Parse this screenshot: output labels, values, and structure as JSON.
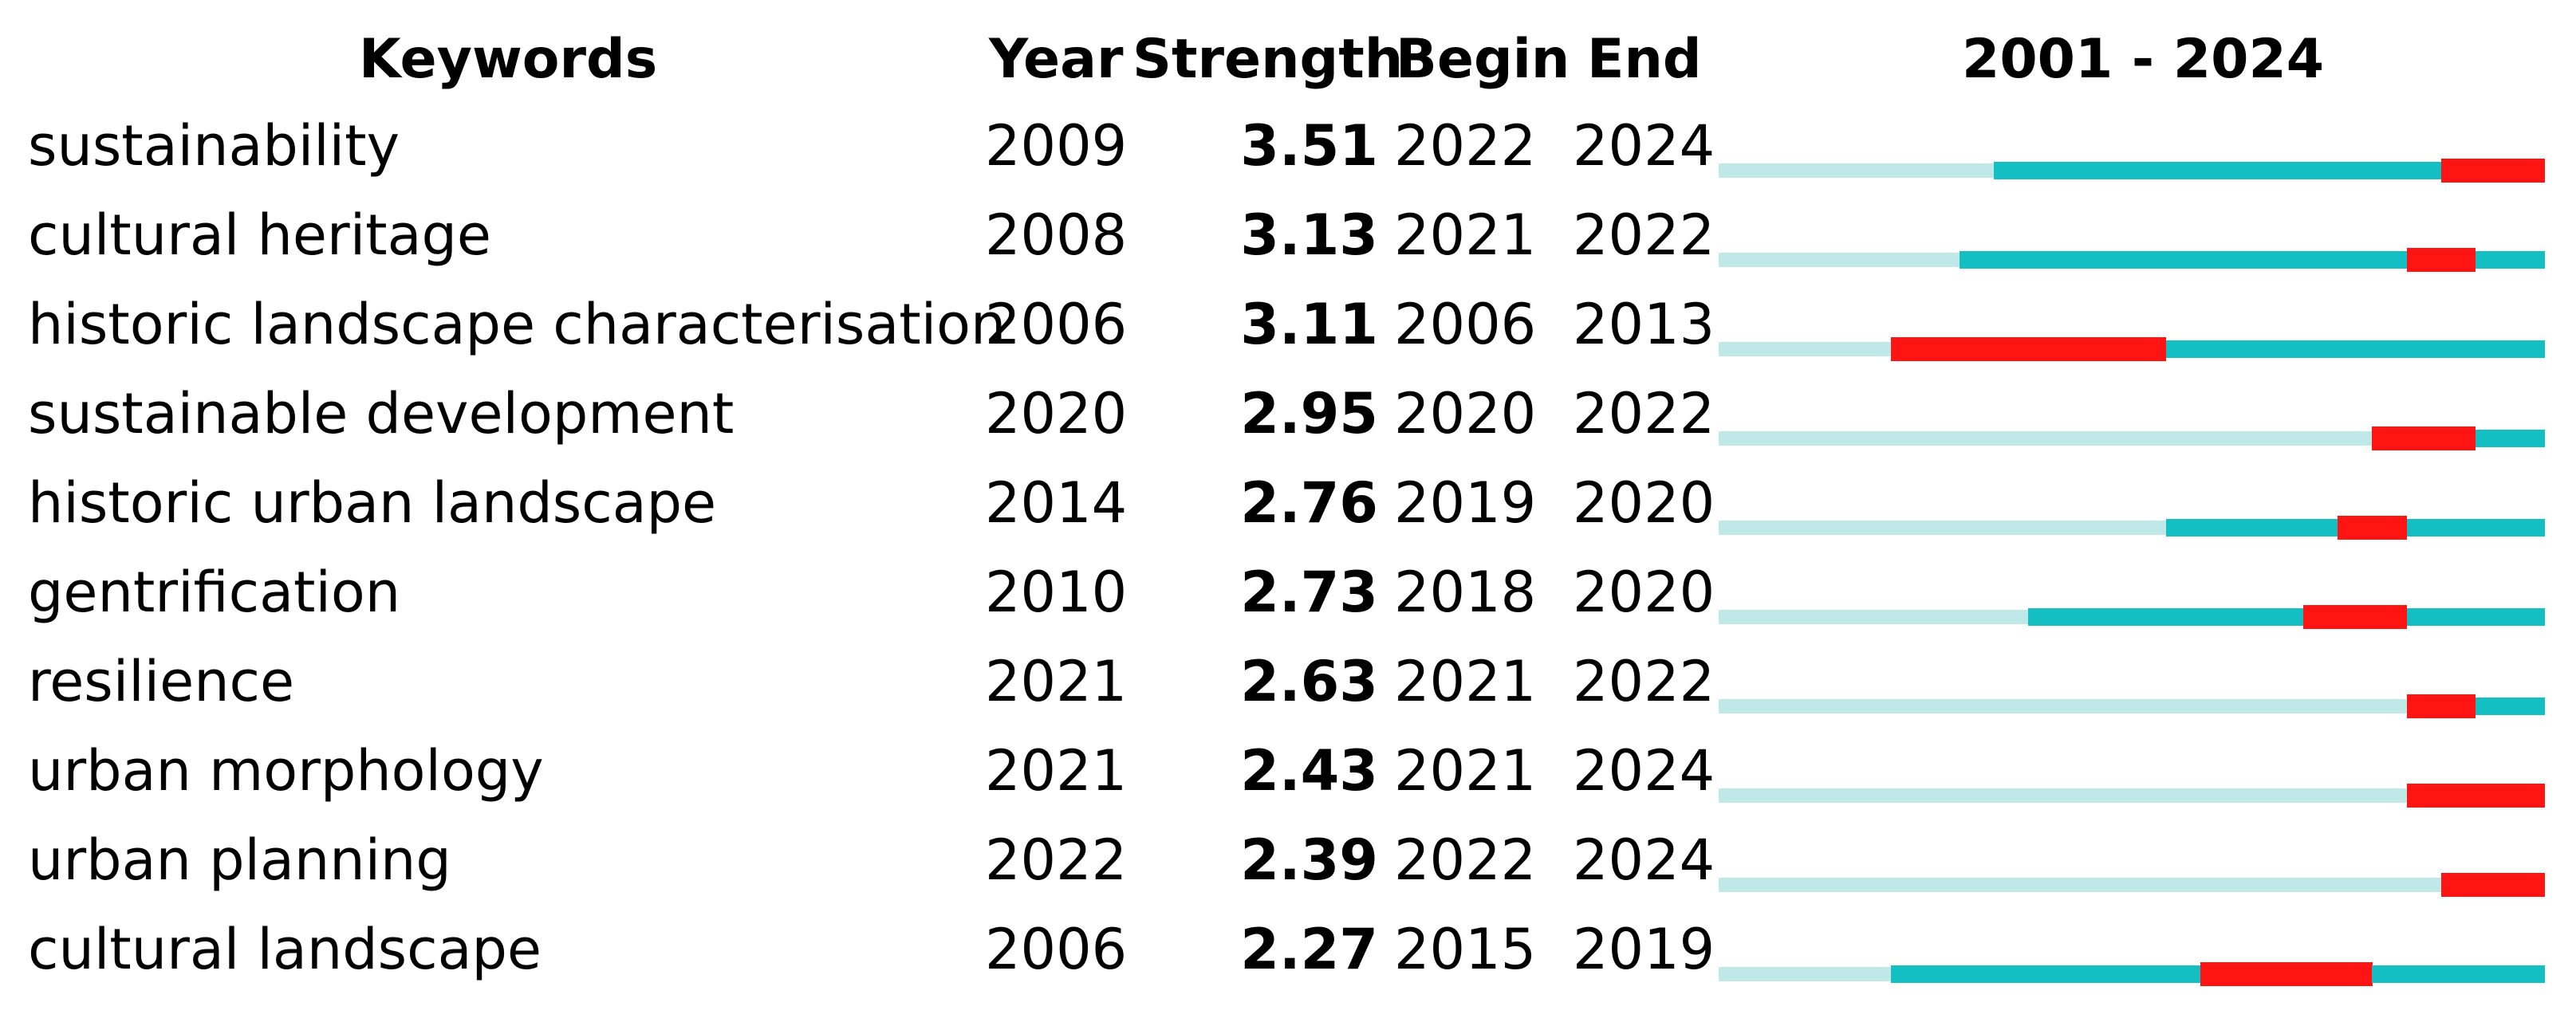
{
  "chart_data": {
    "type": "table",
    "columns": {
      "keywords": "Keywords",
      "year": "Year",
      "strength": "Strength",
      "begin": "Begin",
      "end": "End",
      "range": "2001 - 2024"
    },
    "year_start": 2001,
    "year_end": 2024,
    "colors": {
      "before_appearance": "#bfe8e8",
      "active": "#14bfc4",
      "burst": "#ff1414"
    },
    "rows": [
      {
        "keyword": "sustainability",
        "year": "2009",
        "strength": "3.51",
        "begin": "2022",
        "end": "2024"
      },
      {
        "keyword": "cultural heritage",
        "year": "2008",
        "strength": "3.13",
        "begin": "2021",
        "end": "2022"
      },
      {
        "keyword": "historic landscape characterisation",
        "year": "2006",
        "strength": "3.11",
        "begin": "2006",
        "end": "2013"
      },
      {
        "keyword": "sustainable development",
        "year": "2020",
        "strength": "2.95",
        "begin": "2020",
        "end": "2022"
      },
      {
        "keyword": "historic urban landscape",
        "year": "2014",
        "strength": "2.76",
        "begin": "2019",
        "end": "2020"
      },
      {
        "keyword": "gentrification",
        "year": "2010",
        "strength": "2.73",
        "begin": "2018",
        "end": "2020"
      },
      {
        "keyword": "resilience",
        "year": "2021",
        "strength": "2.63",
        "begin": "2021",
        "end": "2022"
      },
      {
        "keyword": "urban morphology",
        "year": "2021",
        "strength": "2.43",
        "begin": "2021",
        "end": "2024"
      },
      {
        "keyword": "urban planning",
        "year": "2022",
        "strength": "2.39",
        "begin": "2022",
        "end": "2024"
      },
      {
        "keyword": "cultural landscape",
        "year": "2006",
        "strength": "2.27",
        "begin": "2015",
        "end": "2019"
      }
    ]
  }
}
